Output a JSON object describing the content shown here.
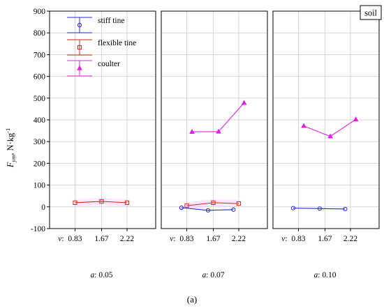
{
  "chart_data": {
    "type": "line",
    "ylabel_main": "F",
    "ylabel_sub": "ym",
    "ylabel_unit": ", N·kg",
    "ylabel_exp": "-1",
    "ylim": [
      -100,
      900
    ],
    "yticks": [
      "-100",
      "0",
      "100",
      "200",
      "300",
      "400",
      "500",
      "600",
      "700",
      "800",
      "900"
    ],
    "x_var": "v",
    "x_categories": [
      "0.83",
      "1.67",
      "2.22"
    ],
    "corner_label": "soil",
    "caption": "(a)",
    "grid": true,
    "legend_position": "top-left",
    "legend": [
      "stiff tine",
      "flexible tine",
      "coulter"
    ],
    "colors": {
      "stiff": "#2b2bd6",
      "flexible": "#c8281e",
      "coulter": "#e020e0"
    },
    "panels": [
      {
        "a_var": "a",
        "a_value": "0.05",
        "series": [
          {
            "name": "flexible tine",
            "values": [
              19,
              25,
              19
            ]
          }
        ]
      },
      {
        "a_var": "a",
        "a_value": "0.07",
        "series": [
          {
            "name": "stiff tine",
            "values": [
              -4,
              -16,
              -13
            ]
          },
          {
            "name": "flexible tine",
            "values": [
              5,
              19,
              15
            ]
          },
          {
            "name": "coulter",
            "values": [
              345,
              346,
              478
            ]
          }
        ]
      },
      {
        "a_var": "a",
        "a_value": "0.10",
        "series": [
          {
            "name": "stiff tine",
            "values": [
              -6,
              -8,
              -10
            ]
          },
          {
            "name": "coulter",
            "values": [
              372,
              324,
              402
            ]
          }
        ]
      }
    ]
  }
}
